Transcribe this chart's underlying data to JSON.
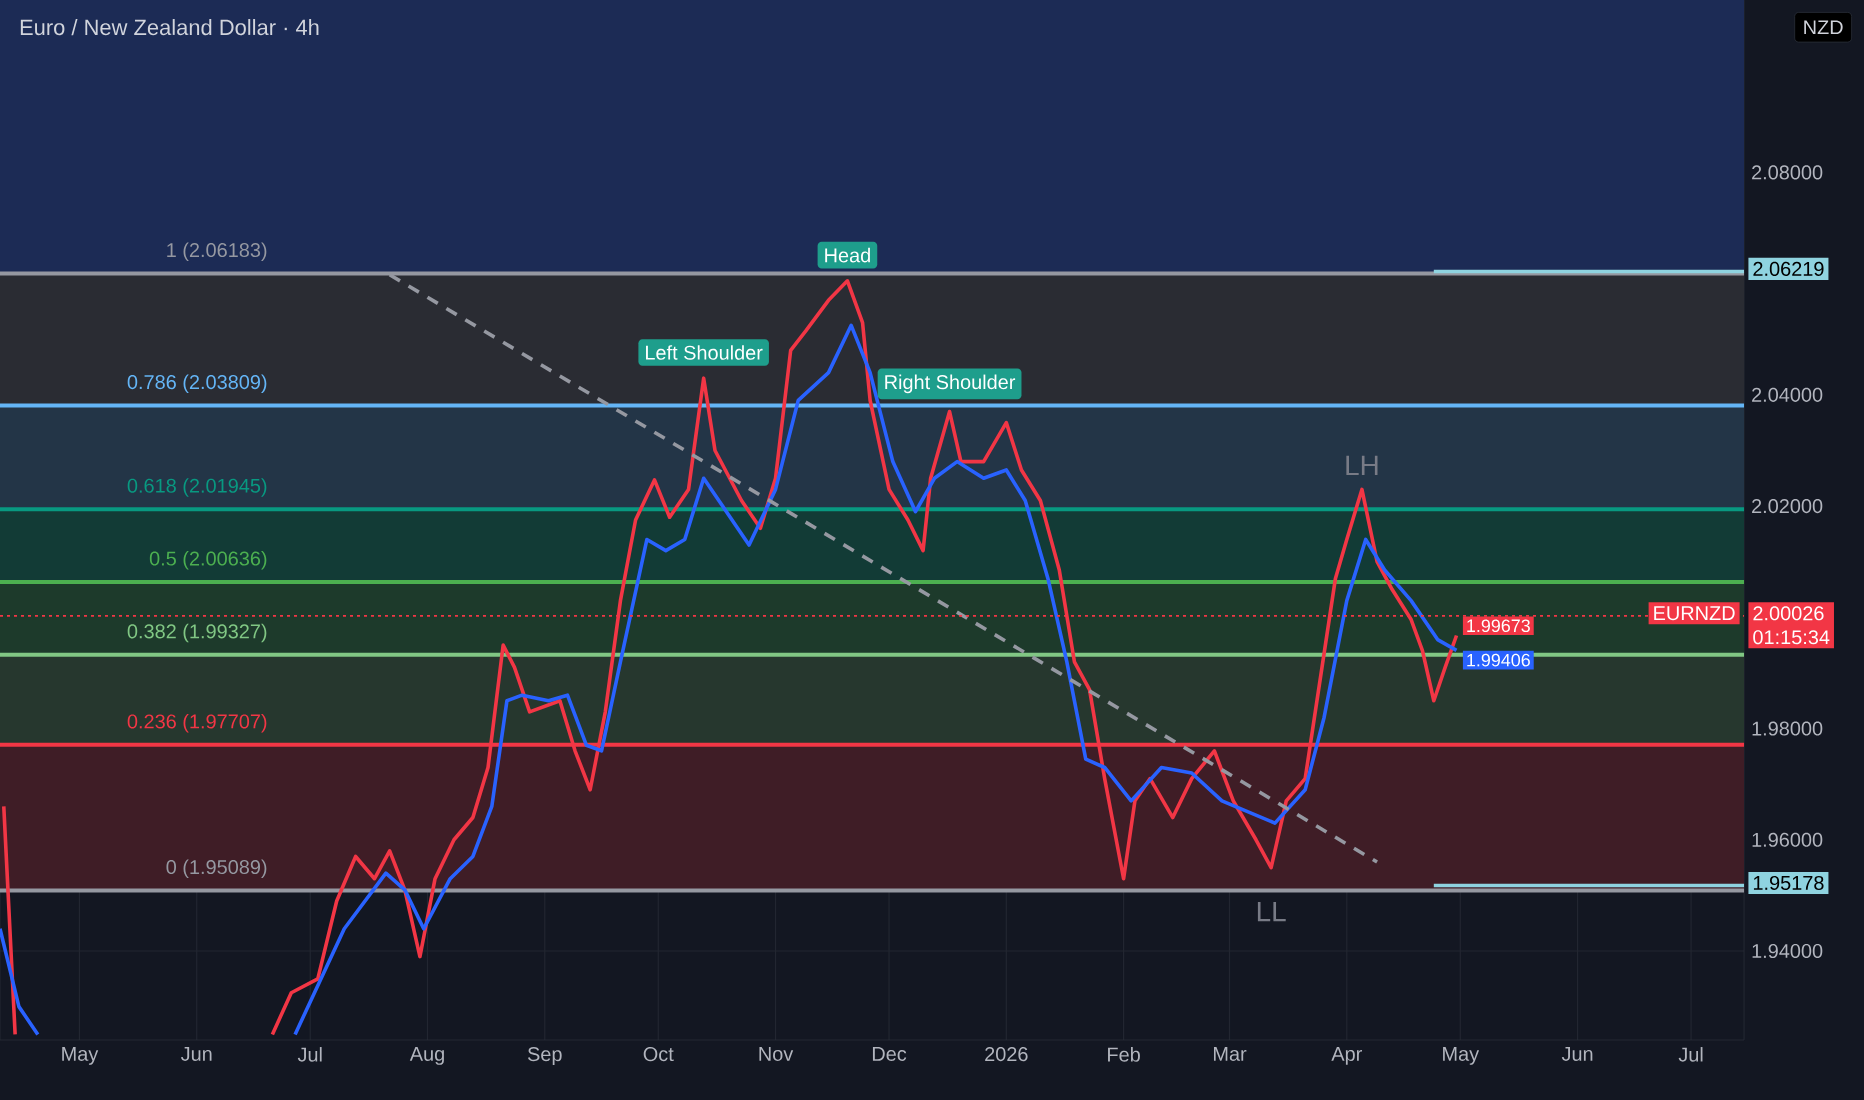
{
  "chart_data": {
    "type": "line",
    "title": "Euro / New Zealand Dollar · 4h",
    "ylabel": "NZD",
    "xlim": [
      "2025-04-10",
      "2026-07-15"
    ],
    "ylim": [
      1.924,
      2.111
    ],
    "xticks": [
      {
        "value": "2025-05-01",
        "label": "May"
      },
      {
        "value": "2025-06-01",
        "label": "Jun"
      },
      {
        "value": "2025-07-01",
        "label": "Jul"
      },
      {
        "value": "2025-08-01",
        "label": "Aug"
      },
      {
        "value": "2025-09-01",
        "label": "Sep"
      },
      {
        "value": "2025-10-01",
        "label": "Oct"
      },
      {
        "value": "2025-11-01",
        "label": "Nov"
      },
      {
        "value": "2025-12-01",
        "label": "Dec"
      },
      {
        "value": "2026-01-01",
        "label": "2026"
      },
      {
        "value": "2026-02-01",
        "label": "Feb"
      },
      {
        "value": "2026-03-01",
        "label": "Mar"
      },
      {
        "value": "2026-04-01",
        "label": "Apr"
      },
      {
        "value": "2026-05-01",
        "label": "May"
      },
      {
        "value": "2026-06-01",
        "label": "Jun"
      },
      {
        "value": "2026-07-01",
        "label": "Jul"
      }
    ],
    "yticks": [
      {
        "value": 1.94,
        "label": "1.94000"
      },
      {
        "value": 1.96,
        "label": "1.96000"
      },
      {
        "value": 1.98,
        "label": "1.98000"
      },
      {
        "value": 2.0,
        "label": null
      },
      {
        "value": 2.02,
        "label": "2.02000"
      },
      {
        "value": 2.04,
        "label": "2.04000"
      },
      {
        "value": 2.06,
        "label": null
      },
      {
        "value": 2.08,
        "label": "2.08000"
      },
      {
        "value": 2.1,
        "label": null
      }
    ],
    "grid": true,
    "bands": [
      {
        "axis": "y",
        "from": 2.06183,
        "to": 2.111,
        "color": "#1c2b55"
      },
      {
        "axis": "y",
        "from": 2.03809,
        "to": 2.06183,
        "color": "#2a2c33"
      },
      {
        "axis": "y",
        "from": 2.01945,
        "to": 2.03809,
        "color": "#233547"
      },
      {
        "axis": "y",
        "from": 2.00636,
        "to": 2.01945,
        "color": "#123b36"
      },
      {
        "axis": "y",
        "from": 1.99327,
        "to": 2.00636,
        "color": "#1d3a2b"
      },
      {
        "axis": "y",
        "from": 1.97707,
        "to": 1.99327,
        "color": "#26372e"
      },
      {
        "axis": "y",
        "from": 1.95089,
        "to": 1.97707,
        "color": "#3f1d26"
      }
    ],
    "ref_lines": [
      {
        "axis": "y",
        "value": 2.06183,
        "label": "1 (2.06183)",
        "color": "#9598a1"
      },
      {
        "axis": "y",
        "value": 2.03809,
        "label": "0.786 (2.03809)",
        "color": "#64b5f6"
      },
      {
        "axis": "y",
        "value": 2.01945,
        "label": "0.618 (2.01945)",
        "color": "#089981"
      },
      {
        "axis": "y",
        "value": 2.00636,
        "label": "0.5 (2.00636)",
        "color": "#4caf50"
      },
      {
        "axis": "y",
        "value": 1.99327,
        "label": "0.382 (1.99327)",
        "color": "#81c784"
      },
      {
        "axis": "y",
        "value": 1.97707,
        "label": "0.236 (1.97707)",
        "color": "#f23645"
      },
      {
        "axis": "y",
        "value": 1.95089,
        "label": "0 (1.95089)",
        "color": "#9598a1"
      }
    ],
    "series": [
      {
        "color": "#f23645",
        "line_style": "solid",
        "x": [
          "2025-04-11",
          "2025-04-14",
          "2025-05-15",
          "2025-06-21",
          "2025-06-26",
          "2025-07-03",
          "2025-07-08",
          "2025-07-13",
          "2025-07-18",
          "2025-07-22",
          "2025-07-26",
          "2025-07-30",
          "2025-08-03",
          "2025-08-08",
          "2025-08-13",
          "2025-08-17",
          "2025-08-21",
          "2025-08-24",
          "2025-08-28",
          "2025-09-05",
          "2025-09-09",
          "2025-09-13",
          "2025-09-17",
          "2025-09-21",
          "2025-09-25",
          "2025-09-30",
          "2025-10-04",
          "2025-10-09",
          "2025-10-13",
          "2025-10-16",
          "2025-10-23",
          "2025-10-28",
          "2025-11-01",
          "2025-11-05",
          "2025-11-09",
          "2025-11-15",
          "2025-11-20",
          "2025-11-24",
          "2025-11-26",
          "2025-12-01",
          "2025-12-06",
          "2025-12-10",
          "2025-12-12",
          "2025-12-17",
          "2025-12-20",
          "2025-12-26",
          "2026-01-01",
          "2026-01-05",
          "2026-01-10",
          "2026-01-15",
          "2026-01-19",
          "2026-01-23",
          "2026-01-27",
          "2026-02-01",
          "2026-02-04",
          "2026-02-08",
          "2026-02-14",
          "2026-02-19",
          "2026-02-25",
          "2026-03-02",
          "2026-03-08",
          "2026-03-12",
          "2026-03-16",
          "2026-03-21",
          "2026-03-25",
          "2026-03-29",
          "2026-04-01",
          "2026-04-05",
          "2026-04-09",
          "2026-04-13",
          "2026-04-18",
          "2026-04-21",
          "2026-04-24",
          "2026-04-27",
          "2026-04-30"
        ],
        "values": [
          1.966,
          1.925,
          null,
          1.925,
          1.9325,
          1.935,
          1.949,
          1.957,
          1.953,
          1.958,
          1.951,
          1.939,
          1.953,
          1.96,
          1.964,
          1.973,
          1.995,
          1.991,
          1.983,
          1.985,
          1.976,
          1.969,
          1.983,
          2.003,
          2.0175,
          2.0247,
          2.018,
          2.023,
          2.043,
          2.03,
          2.021,
          2.016,
          2.025,
          2.048,
          2.0515,
          2.057,
          2.0605,
          2.053,
          2.039,
          2.023,
          2.0175,
          2.012,
          2.025,
          2.037,
          2.028,
          2.028,
          2.035,
          2.0265,
          2.021,
          2.0085,
          1.992,
          1.987,
          1.971,
          1.953,
          1.967,
          1.971,
          1.964,
          1.971,
          1.976,
          1.967,
          1.96,
          1.955,
          1.967,
          1.971,
          1.989,
          2.007,
          2.014,
          2.023,
          2.01,
          2.005,
          1.9996,
          1.994,
          1.985,
          1.991,
          1.99673
        ],
        "value_labels": [
          null,
          null,
          null,
          null,
          null,
          null,
          null,
          null,
          null,
          null,
          null,
          null,
          null,
          null,
          null,
          null,
          null,
          null,
          null,
          null,
          null,
          null,
          null,
          null,
          null,
          null,
          null,
          null,
          null,
          null,
          null,
          null,
          null,
          null,
          null,
          null,
          null,
          null,
          null,
          null,
          null,
          null,
          null,
          null,
          null,
          null,
          null,
          null,
          null,
          null,
          null,
          null,
          null,
          null,
          null,
          null,
          null,
          null,
          null,
          null,
          null,
          null,
          null,
          null,
          null,
          null,
          null,
          null,
          null,
          null,
          null,
          null,
          null,
          null,
          "1.99673"
        ]
      },
      {
        "color": "#2962ff",
        "line_style": "solid",
        "x": [
          "2025-04-10",
          "2025-04-15",
          "2025-04-20",
          "2025-05-15",
          "2025-06-27",
          "2025-07-10",
          "2025-07-21",
          "2025-07-26",
          "2025-07-31",
          "2025-08-07",
          "2025-08-13",
          "2025-08-18",
          "2025-08-22",
          "2025-08-26",
          "2025-09-02",
          "2025-09-07",
          "2025-09-12",
          "2025-09-16",
          "2025-09-21",
          "2025-09-28",
          "2025-10-03",
          "2025-10-08",
          "2025-10-13",
          "2025-10-18",
          "2025-10-25",
          "2025-11-01",
          "2025-11-07",
          "2025-11-15",
          "2025-11-21",
          "2025-11-26",
          "2025-12-02",
          "2025-12-08",
          "2025-12-13",
          "2025-12-19",
          "2025-12-26",
          "2026-01-01",
          "2026-01-06",
          "2026-01-12",
          "2026-01-17",
          "2026-01-22",
          "2026-01-27",
          "2026-02-03",
          "2026-02-11",
          "2026-02-19",
          "2026-02-27",
          "2026-03-13",
          "2026-03-21",
          "2026-03-26",
          "2026-04-01",
          "2026-04-06",
          "2026-04-11",
          "2026-04-18",
          "2026-04-25",
          "2026-04-30"
        ],
        "values": [
          1.944,
          1.93,
          1.925,
          null,
          1.925,
          1.944,
          1.954,
          1.951,
          1.944,
          1.953,
          1.957,
          1.966,
          1.985,
          1.986,
          1.985,
          1.986,
          1.977,
          1.976,
          1.992,
          2.014,
          2.012,
          2.014,
          2.025,
          2.02,
          2.013,
          2.023,
          2.039,
          2.044,
          2.0525,
          2.044,
          2.028,
          2.019,
          2.025,
          2.028,
          2.025,
          2.0265,
          2.021,
          2.007,
          1.992,
          1.9745,
          1.973,
          1.967,
          1.973,
          1.972,
          1.967,
          1.963,
          1.969,
          1.982,
          2.003,
          2.014,
          2.0085,
          2.003,
          1.996,
          1.99406
        ],
        "value_labels": [
          null,
          null,
          null,
          null,
          null,
          null,
          null,
          null,
          null,
          null,
          null,
          null,
          null,
          null,
          null,
          null,
          null,
          null,
          null,
          null,
          null,
          null,
          null,
          null,
          null,
          null,
          null,
          null,
          null,
          null,
          null,
          null,
          null,
          null,
          null,
          null,
          null,
          null,
          null,
          null,
          null,
          null,
          null,
          null,
          null,
          null,
          null,
          null,
          null,
          null,
          null,
          null,
          null,
          "1.99406"
        ]
      },
      {
        "color": "#9598a1",
        "line_style": "dashed",
        "x": [
          "2025-07-22",
          "2026-04-09"
        ],
        "values": [
          2.0616,
          1.956
        ]
      },
      {
        "color": "#8fd3e0",
        "line_style": "solid",
        "x": [
          "2026-04-24",
          "2026-07-15"
        ],
        "values": [
          2.06219,
          2.06219
        ],
        "value_labels": [
          null,
          "2.06219"
        ]
      },
      {
        "color": "#8fd3e0",
        "line_style": "solid",
        "x": [
          "2026-04-24",
          "2026-07-15"
        ],
        "values": [
          1.95178,
          1.95178
        ],
        "value_labels": [
          null,
          "1.95178"
        ]
      },
      {
        "color": "#f23645",
        "line_style": "dotted",
        "x": [
          "2025-04-10",
          "2026-07-15"
        ],
        "values": [
          2.00026,
          2.00026
        ],
        "value_labels": [
          null,
          "2.00026"
        ]
      }
    ],
    "annotations": [
      {
        "text": "Left Shoulder",
        "x": "2025-10-13",
        "y": 2.043
      },
      {
        "text": "Head",
        "x": "2025-11-20",
        "y": 2.0605
      },
      {
        "text": "Right Shoulder",
        "x": "2025-12-17",
        "y": 2.037
      },
      {
        "text": "LH",
        "x": "2026-04-05",
        "y": 2.023
      },
      {
        "text": "LL",
        "x": "2026-03-12",
        "y": 1.955
      },
      "EURNZD",
      "01:15:34"
    ]
  }
}
